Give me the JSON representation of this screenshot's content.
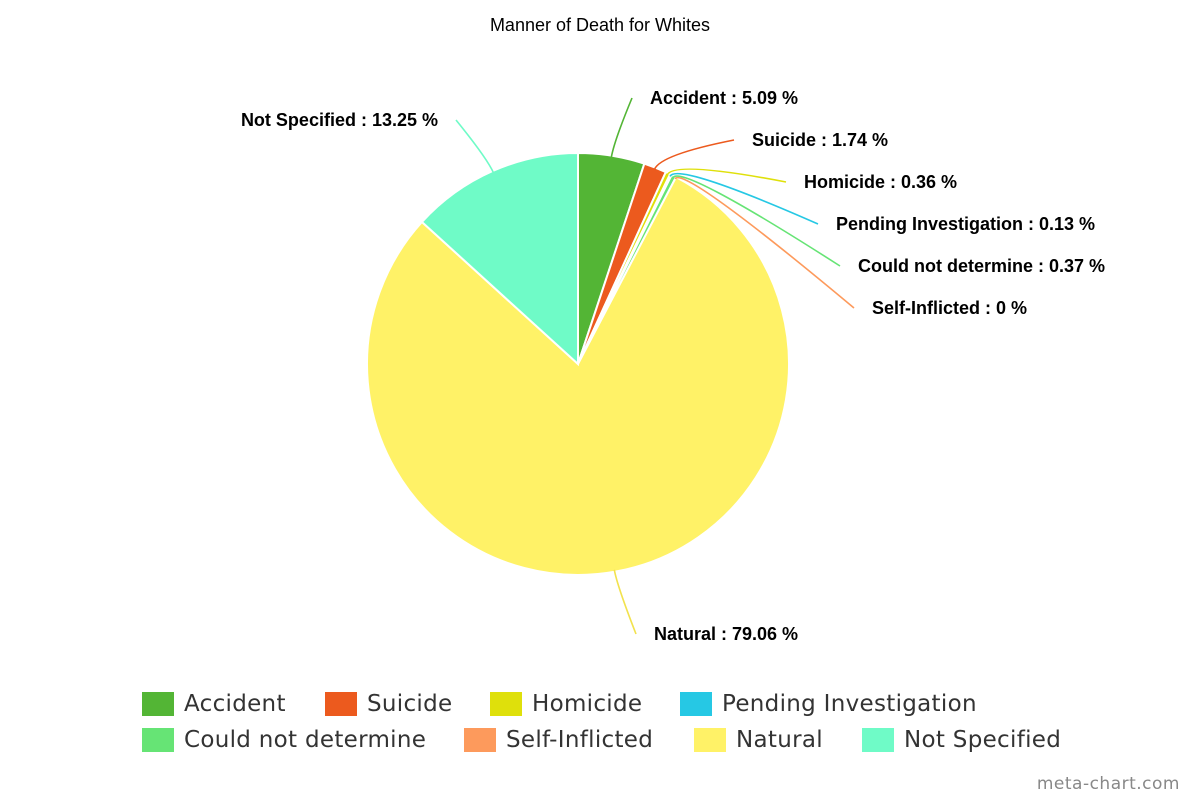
{
  "chart_data": {
    "type": "pie",
    "title": "Manner of Death for Whites",
    "label_separator": " : ",
    "unit": " %",
    "slices": [
      {
        "name": "Accident",
        "value": 5.09,
        "color": "#53b535"
      },
      {
        "name": "Suicide",
        "value": 1.74,
        "color": "#ec5a1e"
      },
      {
        "name": "Homicide",
        "value": 0.36,
        "color": "#dfe00b"
      },
      {
        "name": "Pending Investigation",
        "value": 0.13,
        "color": "#26c8e4"
      },
      {
        "name": "Could not determine",
        "value": 0.37,
        "color": "#66e475"
      },
      {
        "name": "Self-Inflicted",
        "value": 0,
        "color": "#fd9a5c"
      },
      {
        "name": "Natural",
        "value": 79.06,
        "color": "#fff267"
      },
      {
        "name": "Not Specified",
        "value": 13.25,
        "color": "#6ffbc7"
      }
    ],
    "legend_position": "bottom"
  },
  "watermark": "meta-chart.com"
}
